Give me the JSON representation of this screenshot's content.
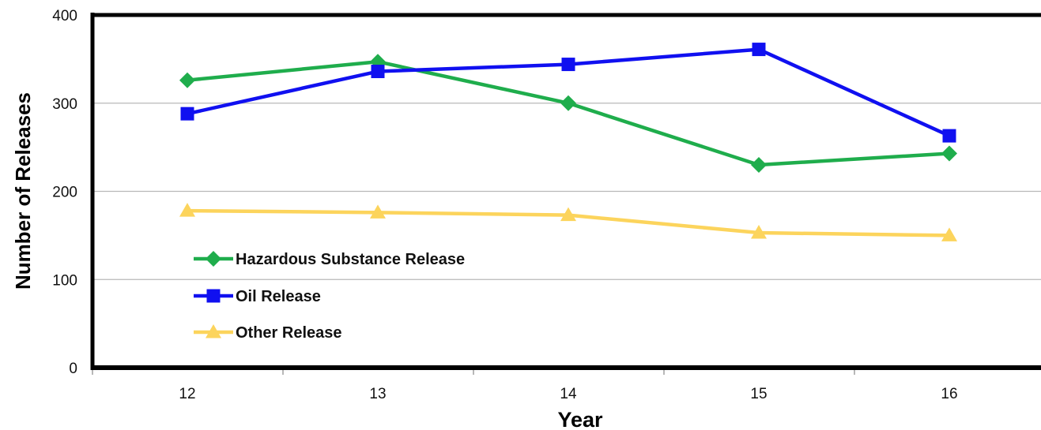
{
  "chart_data": {
    "type": "line",
    "xlabel": "Year",
    "ylabel": "Number of Releases",
    "categories": [
      "12",
      "13",
      "14",
      "15",
      "16"
    ],
    "ylim": [
      0,
      400
    ],
    "yticks": [
      "0",
      "100",
      "200",
      "300",
      "400"
    ],
    "grid": true,
    "legend": "bottom-left",
    "series": [
      {
        "name": "Hazardous Substance Release",
        "values": [
          326,
          347,
          300,
          230,
          243
        ],
        "color": "#1fad4c",
        "marker": "diamond"
      },
      {
        "name": "Oil Release",
        "values": [
          288,
          336,
          344,
          361,
          263
        ],
        "color": "#1010f0",
        "marker": "square"
      },
      {
        "name": "Other Release",
        "values": [
          178,
          176,
          173,
          153,
          150
        ],
        "color": "#fcd45c",
        "marker": "triangle"
      }
    ]
  }
}
